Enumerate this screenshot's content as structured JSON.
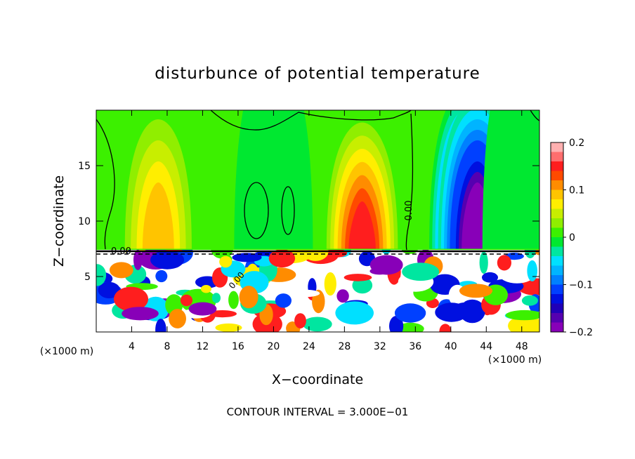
{
  "chart_data": {
    "type": "heatmap",
    "title": "disturbunce of potential temperature",
    "xlabel": "X−coordinate",
    "ylabel": "Z−coordinate",
    "x_unit_left": "(×1000 m)",
    "x_unit_right": "(×1000 m)",
    "footer": "CONTOUR INTERVAL = 3.000E−01",
    "xlim": [
      0,
      50
    ],
    "ylim": [
      0,
      20
    ],
    "xticks": [
      4,
      8,
      12,
      16,
      20,
      24,
      28,
      32,
      36,
      40,
      44,
      48
    ],
    "yticks": [
      5,
      10,
      15
    ],
    "inversion_height": 7.5,
    "contour_labels": [
      "0.00",
      "0.00",
      "0.00"
    ],
    "colorbar": {
      "min": -0.2,
      "max": 0.2,
      "ticks": [
        "0.2",
        "0.1",
        "0",
        "−0.1",
        "−0.2"
      ],
      "tick_values": [
        0.2,
        0.1,
        0,
        -0.1,
        -0.2
      ],
      "colors": [
        "#ffb0b0",
        "#ff6e6e",
        "#ff1e1e",
        "#ff4a00",
        "#ff8c00",
        "#ffc400",
        "#ffee00",
        "#c8ee00",
        "#90ee00",
        "#3cf000",
        "#00e830",
        "#00e6a0",
        "#00e0ff",
        "#00b4ff",
        "#0080ff",
        "#0040ff",
        "#0010e0",
        "#2000b8",
        "#5500b0",
        "#8800b8"
      ]
    },
    "upper_features": [
      {
        "x": 7,
        "z": 10,
        "value": 0.09
      },
      {
        "x": 30,
        "z": 9,
        "value": 0.15
      },
      {
        "x": 42,
        "z": 11,
        "value": -0.19
      },
      {
        "x": 43,
        "z": 10,
        "value": -0.2
      },
      {
        "x": 20,
        "z": 14,
        "value": 0.0
      },
      {
        "x": 48,
        "z": 15,
        "value": -0.02
      }
    ]
  }
}
